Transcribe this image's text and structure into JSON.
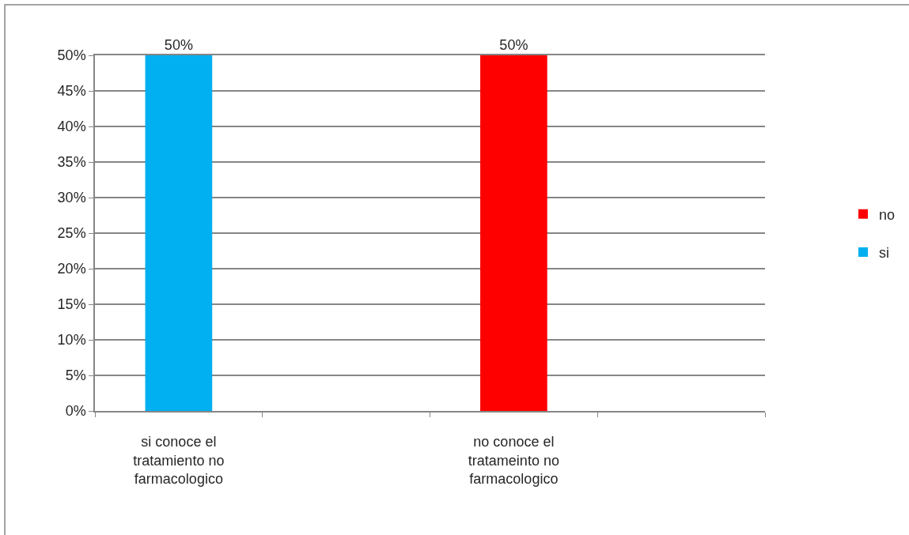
{
  "chart_data": {
    "type": "bar",
    "categories": [
      "si conoce el tratamiento no farmacologico",
      null,
      "no conoce el tratameinto no farmacologico",
      null
    ],
    "series": [
      {
        "name": "no",
        "color": "#ff0000",
        "values": [
          null,
          null,
          50,
          null
        ],
        "value_labels": [
          null,
          null,
          "50%",
          null
        ]
      },
      {
        "name": "si",
        "color": "#00b0f0",
        "values": [
          50,
          null,
          null,
          null
        ],
        "value_labels": [
          "50%",
          null,
          null,
          null
        ]
      }
    ],
    "ylim": [
      0,
      50
    ],
    "yticks": [
      {
        "value": 0,
        "label": "0%"
      },
      {
        "value": 5,
        "label": "5%"
      },
      {
        "value": 10,
        "label": "10%"
      },
      {
        "value": 15,
        "label": "15%"
      },
      {
        "value": 20,
        "label": "20%"
      },
      {
        "value": 25,
        "label": "25%"
      },
      {
        "value": 30,
        "label": "30%"
      },
      {
        "value": 35,
        "label": "35%"
      },
      {
        "value": 40,
        "label": "40%"
      },
      {
        "value": 45,
        "label": "45%"
      },
      {
        "value": 50,
        "label": "50%"
      }
    ],
    "grid": "y",
    "legend": "right"
  }
}
